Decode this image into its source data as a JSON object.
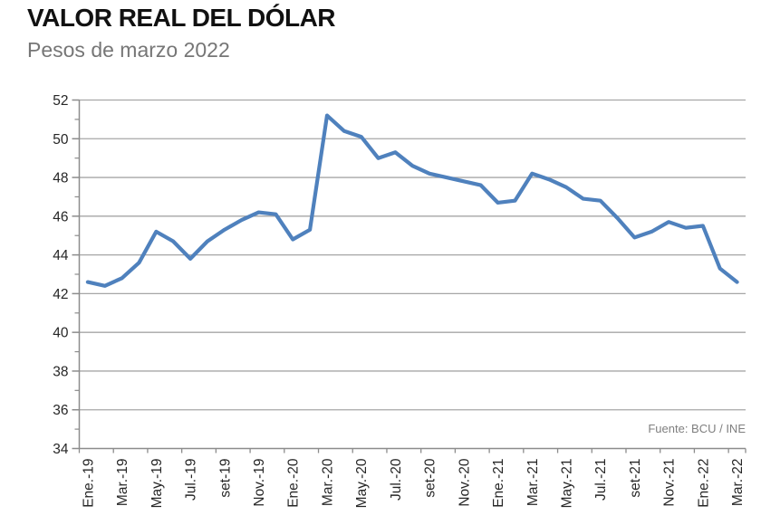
{
  "chart_data": {
    "type": "line",
    "title": "VALOR REAL DEL DÓLAR",
    "subtitle": "Pesos de marzo 2022",
    "source": "Fuente: BCU / INE",
    "legend": "none",
    "grid": "horizontal",
    "line_color": "#4f81bd",
    "grid_color": "#a6a6a6",
    "axis_color": "#8c8c8c",
    "label_color": "#262626",
    "y_axis": {
      "min": 34,
      "max": 52,
      "major_step": 2,
      "minor_step": 1,
      "tick_labels": [
        "34",
        "36",
        "38",
        "40",
        "42",
        "44",
        "46",
        "48",
        "50",
        "52"
      ]
    },
    "x_axis": {
      "tick_label_every_n_months": 2,
      "tick_labels": [
        "Ene.-19",
        "Mar.-19",
        "May.-19",
        "Jul.-19",
        "set-19",
        "Nov.-19",
        "Ene.-20",
        "Mar.-20",
        "May.-20",
        "Jul.-20",
        "set-20",
        "Nov.-20",
        "Ene.-21",
        "Mar.-21",
        "May.-21",
        "Jul.-21",
        "set-21",
        "Nov.-21",
        "Ene.-22",
        "Mar.-22"
      ]
    },
    "months": [
      "ene-19",
      "feb-19",
      "mar-19",
      "abr-19",
      "may-19",
      "jun-19",
      "jul-19",
      "ago-19",
      "set-19",
      "oct-19",
      "nov-19",
      "dic-19",
      "ene-20",
      "feb-20",
      "mar-20",
      "abr-20",
      "may-20",
      "jun-20",
      "jul-20",
      "ago-20",
      "set-20",
      "oct-20",
      "nov-20",
      "dic-20",
      "ene-21",
      "feb-21",
      "mar-21",
      "abr-21",
      "may-21",
      "jun-21",
      "jul-21",
      "ago-21",
      "set-21",
      "oct-21",
      "nov-21",
      "dic-21",
      "ene-22",
      "feb-22",
      "mar-22"
    ],
    "series": [
      {
        "name": "Valor real del dólar (pesos de marzo 2022)",
        "values": [
          42.6,
          42.4,
          42.8,
          43.6,
          45.2,
          44.7,
          43.8,
          44.7,
          45.3,
          45.8,
          46.2,
          46.1,
          44.8,
          45.3,
          51.2,
          50.4,
          50.1,
          49.0,
          49.3,
          48.6,
          48.2,
          48.0,
          47.8,
          47.6,
          46.7,
          46.8,
          48.2,
          47.9,
          47.5,
          46.9,
          46.8,
          45.9,
          44.9,
          45.2,
          45.7,
          45.4,
          45.5,
          43.3,
          42.6
        ]
      }
    ]
  }
}
